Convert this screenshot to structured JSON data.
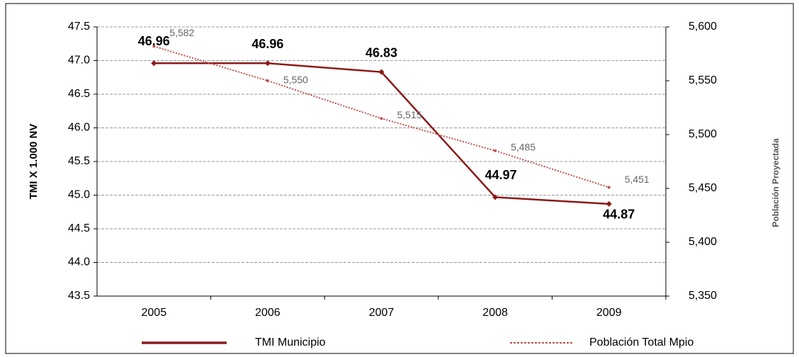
{
  "chart_data": {
    "type": "line",
    "categories": [
      "2005",
      "2006",
      "2007",
      "2008",
      "2009"
    ],
    "series": [
      {
        "name": "TMI Municipio",
        "color": "#8b1a1a",
        "values": [
          46.96,
          46.96,
          46.83,
          44.97,
          44.87
        ]
      },
      {
        "name": "Población Total Mpio",
        "color": "#c0504d",
        "axis": "y2",
        "values": [
          5582,
          5550,
          5515,
          5485,
          5451
        ],
        "value_labels": [
          "5,582",
          "5,550",
          "5,515",
          "5,485",
          "5,451"
        ],
        "dashed": true
      }
    ],
    "ylabel": "TMI X 1.000 NV",
    "y2label": "Población Proyectada",
    "ylim": [
      43.5,
      47.5
    ],
    "yticks": [
      43.5,
      {
        "value": 44,
        "label": "44.0"
      },
      44.5,
      {
        "value": 45,
        "label": "45.0"
      },
      45.5,
      {
        "value": 46,
        "label": "46.0"
      },
      46.5,
      {
        "value": 47,
        "label": "47.0"
      },
      47.5
    ],
    "y2lim": [
      5350,
      5600
    ],
    "y2ticks": [
      {
        "value": 5350,
        "label": "5,350"
      },
      {
        "value": 5400,
        "label": "5,400"
      },
      {
        "value": 5450,
        "label": "5,450"
      },
      {
        "value": 5500,
        "label": "5,500"
      },
      {
        "value": 5550,
        "label": "5,550"
      },
      {
        "value": 5600,
        "label": "5,600"
      }
    ],
    "grid": true,
    "legend": "bottom"
  }
}
